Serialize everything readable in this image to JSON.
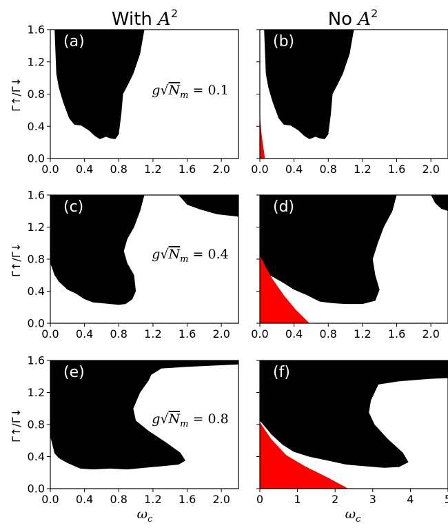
{
  "figure": {
    "column_titles": {
      "left": {
        "text": "With ",
        "math": "A",
        "sup": "2"
      },
      "right": {
        "text": "No ",
        "math": "A",
        "sup": "2"
      }
    },
    "ylabel": "Γ↑/Γ↓",
    "xlabel": "ω",
    "xlabel_sub": "c",
    "annotations": [
      {
        "row": 0,
        "text": "g√N_m = 0.1",
        "lhs": "g",
        "rad": "N",
        "rad_sub": "m",
        "rhs": " = 0.1"
      },
      {
        "row": 1,
        "text": "g√N_m = 0.4",
        "lhs": "g",
        "rad": "N",
        "rad_sub": "m",
        "rhs": " = 0.4"
      },
      {
        "row": 2,
        "text": "g√N_m = 0.8",
        "lhs": "g",
        "rad": "N",
        "rad_sub": "m",
        "rhs": " = 0.8"
      }
    ],
    "colors": {
      "background": "#ffffff",
      "region_black": "#000000",
      "region_red": "#ff0000",
      "axis": "#000000"
    }
  },
  "chart_data": [
    {
      "panel": "(a)",
      "type": "area",
      "xlabel": "",
      "ylabel": "Γ↑/Γ↓",
      "xlim": [
        0.0,
        2.2
      ],
      "ylim": [
        0.0,
        1.6
      ],
      "xticks": [
        "0.0",
        "0.4",
        "0.8",
        "1.2",
        "1.6",
        "2.0"
      ],
      "yticks": [
        "0.0",
        "0.4",
        "0.8",
        "1.2",
        "1.6"
      ],
      "regions": [
        {
          "color": "black",
          "points": [
            [
              0.05,
              1.6
            ],
            [
              0.07,
              1.05
            ],
            [
              0.1,
              0.88
            ],
            [
              0.15,
              0.7
            ],
            [
              0.22,
              0.5
            ],
            [
              0.28,
              0.42
            ],
            [
              0.36,
              0.41
            ],
            [
              0.45,
              0.35
            ],
            [
              0.52,
              0.28
            ],
            [
              0.58,
              0.24
            ],
            [
              0.65,
              0.27
            ],
            [
              0.7,
              0.25
            ],
            [
              0.76,
              0.24
            ],
            [
              0.8,
              0.3
            ],
            [
              0.83,
              0.55
            ],
            [
              0.85,
              0.8
            ],
            [
              0.9,
              0.9
            ],
            [
              0.97,
              1.05
            ],
            [
              1.05,
              1.3
            ],
            [
              1.1,
              1.6
            ]
          ]
        }
      ]
    },
    {
      "panel": "(b)",
      "type": "area",
      "xlabel": "",
      "ylabel": "",
      "xlim": [
        0.0,
        2.2
      ],
      "ylim": [
        0.0,
        1.6
      ],
      "xticks": [
        "0.0",
        "0.4",
        "0.8",
        "1.2",
        "1.6",
        "2.0"
      ],
      "yticks": [],
      "regions": [
        {
          "color": "black",
          "points": [
            [
              0.05,
              1.6
            ],
            [
              0.07,
              1.05
            ],
            [
              0.1,
              0.88
            ],
            [
              0.15,
              0.7
            ],
            [
              0.22,
              0.5
            ],
            [
              0.28,
              0.42
            ],
            [
              0.36,
              0.41
            ],
            [
              0.45,
              0.35
            ],
            [
              0.52,
              0.28
            ],
            [
              0.58,
              0.24
            ],
            [
              0.65,
              0.27
            ],
            [
              0.7,
              0.25
            ],
            [
              0.76,
              0.24
            ],
            [
              0.8,
              0.3
            ],
            [
              0.83,
              0.55
            ],
            [
              0.85,
              0.8
            ],
            [
              0.9,
              0.9
            ],
            [
              0.97,
              1.05
            ],
            [
              1.05,
              1.3
            ],
            [
              1.1,
              1.6
            ]
          ]
        },
        {
          "color": "red",
          "points": [
            [
              0.0,
              0.0
            ],
            [
              0.0,
              0.55
            ],
            [
              0.02,
              0.3
            ],
            [
              0.06,
              0.0
            ]
          ]
        }
      ]
    },
    {
      "panel": "(c)",
      "type": "area",
      "xlabel": "",
      "ylabel": "Γ↑/Γ↓",
      "xlim": [
        0.0,
        2.2
      ],
      "ylim": [
        0.0,
        1.6
      ],
      "xticks": [
        "0.0",
        "0.4",
        "0.8",
        "1.2",
        "1.6",
        "2.0"
      ],
      "yticks": [
        "0.0",
        "0.4",
        "0.8",
        "1.2",
        "1.6"
      ],
      "regions": [
        {
          "color": "black",
          "points": [
            [
              0.0,
              1.6
            ],
            [
              0.0,
              0.75
            ],
            [
              0.05,
              0.6
            ],
            [
              0.1,
              0.52
            ],
            [
              0.2,
              0.42
            ],
            [
              0.3,
              0.37
            ],
            [
              0.4,
              0.3
            ],
            [
              0.5,
              0.26
            ],
            [
              0.6,
              0.25
            ],
            [
              0.7,
              0.24
            ],
            [
              0.8,
              0.23
            ],
            [
              0.88,
              0.24
            ],
            [
              0.96,
              0.3
            ],
            [
              1.0,
              0.4
            ],
            [
              0.98,
              0.6
            ],
            [
              0.9,
              0.75
            ],
            [
              0.86,
              0.9
            ],
            [
              0.9,
              1.05
            ],
            [
              0.98,
              1.2
            ],
            [
              1.05,
              1.4
            ],
            [
              1.1,
              1.6
            ]
          ]
        },
        {
          "color": "black",
          "points": [
            [
              1.5,
              1.6
            ],
            [
              1.6,
              1.48
            ],
            [
              1.75,
              1.42
            ],
            [
              1.95,
              1.36
            ],
            [
              2.2,
              1.33
            ],
            [
              2.2,
              1.6
            ]
          ]
        }
      ]
    },
    {
      "panel": "(d)",
      "type": "area",
      "xlabel": "",
      "ylabel": "",
      "xlim": [
        0.0,
        2.2
      ],
      "ylim": [
        0.0,
        1.6
      ],
      "xticks": [
        "0.0",
        "0.4",
        "0.8",
        "1.2",
        "1.6",
        "2.0"
      ],
      "yticks": [],
      "regions": [
        {
          "color": "black",
          "points": [
            [
              0.0,
              1.6
            ],
            [
              0.0,
              0.85
            ],
            [
              0.08,
              0.62
            ],
            [
              0.15,
              0.58
            ],
            [
              0.25,
              0.52
            ],
            [
              0.4,
              0.42
            ],
            [
              0.55,
              0.35
            ],
            [
              0.7,
              0.27
            ],
            [
              0.85,
              0.25
            ],
            [
              1.0,
              0.24
            ],
            [
              1.2,
              0.24
            ],
            [
              1.35,
              0.28
            ],
            [
              1.4,
              0.42
            ],
            [
              1.35,
              0.6
            ],
            [
              1.32,
              0.8
            ],
            [
              1.38,
              1.0
            ],
            [
              1.45,
              1.2
            ],
            [
              1.55,
              1.4
            ],
            [
              1.6,
              1.6
            ]
          ]
        },
        {
          "color": "black",
          "points": [
            [
              2.0,
              1.6
            ],
            [
              2.05,
              1.5
            ],
            [
              2.12,
              1.43
            ],
            [
              2.2,
              1.4
            ],
            [
              2.2,
              1.6
            ]
          ]
        },
        {
          "color": "red",
          "points": [
            [
              0.0,
              0.0
            ],
            [
              0.0,
              0.85
            ],
            [
              0.07,
              0.7
            ],
            [
              0.15,
              0.55
            ],
            [
              0.28,
              0.35
            ],
            [
              0.42,
              0.17
            ],
            [
              0.58,
              0.0
            ]
          ]
        }
      ]
    },
    {
      "panel": "(e)",
      "type": "area",
      "xlabel": "ω_c",
      "ylabel": "Γ↑/Γ↓",
      "xlim": [
        0.0,
        2.2
      ],
      "ylim": [
        0.0,
        1.6
      ],
      "xticks": [
        "0.0",
        "0.4",
        "0.8",
        "1.2",
        "1.6",
        "2.0"
      ],
      "yticks": [
        "0.0",
        "0.4",
        "0.8",
        "1.2",
        "1.6"
      ],
      "regions": [
        {
          "color": "black",
          "points": [
            [
              0.0,
              1.6
            ],
            [
              0.0,
              0.65
            ],
            [
              0.05,
              0.44
            ],
            [
              0.1,
              0.38
            ],
            [
              0.2,
              0.32
            ],
            [
              0.35,
              0.25
            ],
            [
              0.5,
              0.24
            ],
            [
              0.7,
              0.25
            ],
            [
              0.9,
              0.24
            ],
            [
              1.1,
              0.26
            ],
            [
              1.3,
              0.28
            ],
            [
              1.5,
              0.3
            ],
            [
              1.58,
              0.35
            ],
            [
              1.52,
              0.45
            ],
            [
              1.35,
              0.58
            ],
            [
              1.15,
              0.72
            ],
            [
              1.0,
              0.85
            ],
            [
              0.97,
              1.0
            ],
            [
              1.05,
              1.2
            ],
            [
              1.15,
              1.35
            ],
            [
              1.18,
              1.42
            ],
            [
              1.3,
              1.5
            ],
            [
              1.6,
              1.52
            ],
            [
              2.2,
              1.55
            ],
            [
              2.2,
              1.6
            ]
          ]
        }
      ]
    },
    {
      "panel": "(f)",
      "type": "area",
      "xlabel": "ω_c",
      "ylabel": "",
      "xlim": [
        0,
        5
      ],
      "ylim": [
        0.0,
        1.6
      ],
      "xticks": [
        "0",
        "1",
        "2",
        "3",
        "4",
        "5"
      ],
      "yticks": [],
      "regions": [
        {
          "color": "black",
          "points": [
            [
              0.0,
              1.6
            ],
            [
              0.0,
              0.85
            ],
            [
              0.3,
              0.68
            ],
            [
              0.6,
              0.55
            ],
            [
              0.9,
              0.46
            ],
            [
              1.3,
              0.4
            ],
            [
              1.8,
              0.35
            ],
            [
              2.3,
              0.3
            ],
            [
              2.8,
              0.28
            ],
            [
              3.3,
              0.26
            ],
            [
              3.7,
              0.27
            ],
            [
              3.95,
              0.33
            ],
            [
              3.8,
              0.45
            ],
            [
              3.4,
              0.62
            ],
            [
              3.05,
              0.8
            ],
            [
              2.9,
              0.95
            ],
            [
              2.95,
              1.1
            ],
            [
              3.1,
              1.25
            ],
            [
              3.15,
              1.3
            ],
            [
              3.7,
              1.34
            ],
            [
              4.5,
              1.37
            ],
            [
              5.0,
              1.38
            ],
            [
              5.0,
              1.6
            ]
          ]
        },
        {
          "color": "red",
          "points": [
            [
              0.0,
              0.0
            ],
            [
              0.0,
              0.83
            ],
            [
              0.3,
              0.62
            ],
            [
              0.7,
              0.42
            ],
            [
              1.2,
              0.28
            ],
            [
              1.8,
              0.14
            ],
            [
              2.35,
              0.0
            ]
          ]
        }
      ]
    }
  ]
}
